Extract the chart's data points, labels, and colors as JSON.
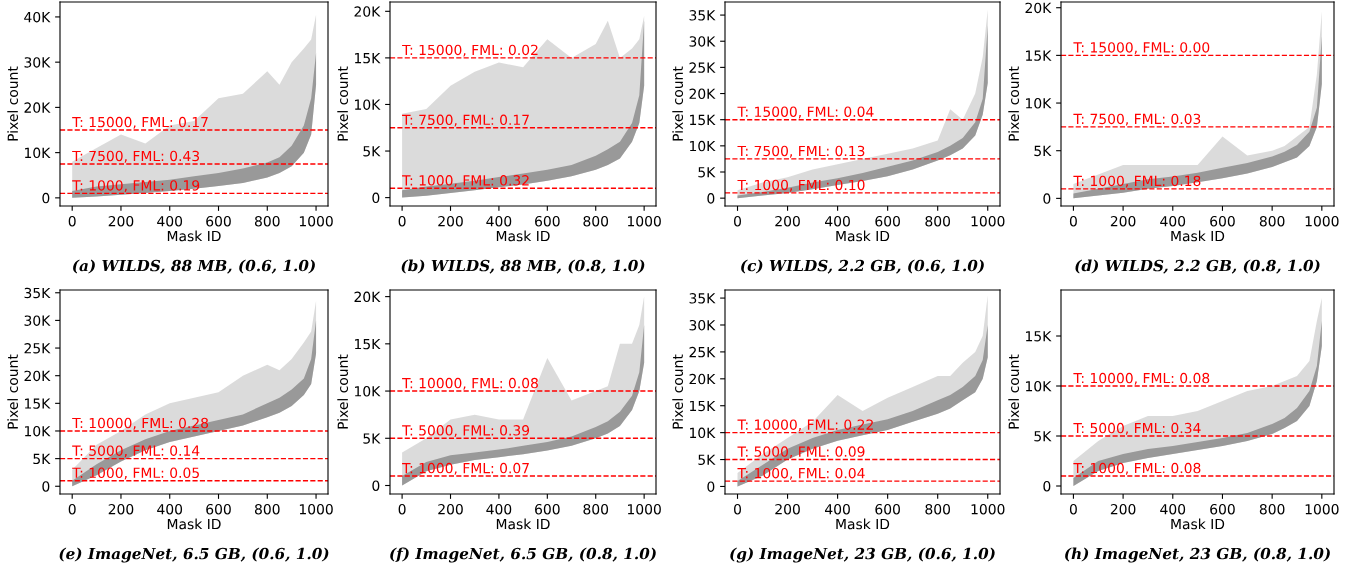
{
  "chart_data": [
    {
      "type": "area",
      "title": "(a) WILDS, 88 MB, (0.6, 1.0)",
      "xlabel": "Mask ID",
      "ylabel": "Pixel count",
      "xlim": [
        -50,
        1049
      ],
      "ylim": [
        -1800,
        43300
      ],
      "xticks": [
        0,
        200,
        400,
        600,
        800,
        1000
      ],
      "yticks": [
        0,
        {
          "value": 10000,
          "label": "10K"
        },
        {
          "value": 20000,
          "label": "20K"
        },
        {
          "value": 30000,
          "label": "30K"
        },
        {
          "value": 40000,
          "label": "40K"
        }
      ],
      "series": [
        {
          "color": "#999999",
          "x": [
            0,
            100,
            200,
            300,
            400,
            500,
            600,
            700,
            800,
            850,
            900,
            950,
            980,
            1000
          ],
          "lower": [
            0,
            300,
            700,
            1100,
            1500,
            2000,
            2600,
            3300,
            4500,
            5500,
            7000,
            10000,
            14000,
            25000
          ],
          "values": [
            1500,
            2500,
            3000,
            3500,
            4000,
            4800,
            5500,
            6500,
            7800,
            9000,
            11500,
            16000,
            22000,
            32000
          ],
          "upper": [
            8000,
            11000,
            14000,
            12000,
            16000,
            17000,
            22000,
            23000,
            28000,
            25000,
            30000,
            33000,
            35000,
            40500
          ]
        }
      ],
      "ref_lines": [
        {
          "axis": "y",
          "value": 15000,
          "label": "T: 15000, FML: 0.17",
          "color": "#ff0000",
          "line_style": "dashed"
        },
        {
          "axis": "y",
          "value": 7500,
          "label": "T: 7500, FML: 0.43",
          "color": "#ff0000",
          "line_style": "dashed"
        },
        {
          "axis": "y",
          "value": 1000,
          "label": "T: 1000, FML: 0.19",
          "color": "#ff0000",
          "line_style": "dashed"
        }
      ]
    },
    {
      "type": "area",
      "title": "(b) WILDS, 88 MB, (0.8, 1.0)",
      "xlabel": "Mask ID",
      "ylabel": "Pixel count",
      "xlim": [
        -50,
        1049
      ],
      "ylim": [
        -900,
        21000
      ],
      "xticks": [
        0,
        200,
        400,
        600,
        800,
        1000
      ],
      "yticks": [
        0,
        {
          "value": 5000,
          "label": "5K"
        },
        {
          "value": 10000,
          "label": "10K"
        },
        {
          "value": 15000,
          "label": "15K"
        },
        {
          "value": 20000,
          "label": "20K"
        }
      ],
      "series": [
        {
          "color": "#999999",
          "x": [
            0,
            100,
            200,
            300,
            400,
            500,
            600,
            700,
            800,
            850,
            900,
            950,
            980,
            1000
          ],
          "lower": [
            0,
            200,
            500,
            800,
            1100,
            1400,
            1800,
            2300,
            3000,
            3500,
            4200,
            6000,
            8000,
            12000
          ],
          "values": [
            800,
            1200,
            1500,
            1800,
            2200,
            2600,
            3000,
            3500,
            4500,
            5200,
            6000,
            8000,
            11000,
            19000
          ],
          "upper": [
            9000,
            9500,
            12000,
            13500,
            14500,
            14000,
            17000,
            15000,
            16500,
            19000,
            15000,
            16000,
            17000,
            19500
          ]
        }
      ],
      "ref_lines": [
        {
          "axis": "y",
          "value": 15000,
          "label": "T: 15000, FML: 0.02",
          "color": "#ff0000",
          "line_style": "dashed"
        },
        {
          "axis": "y",
          "value": 7500,
          "label": "T: 7500, FML: 0.17",
          "color": "#ff0000",
          "line_style": "dashed"
        },
        {
          "axis": "y",
          "value": 1000,
          "label": "T: 1000, FML: 0.32",
          "color": "#ff0000",
          "line_style": "dashed"
        }
      ]
    },
    {
      "type": "area",
      "title": "(c) WILDS, 2.2 GB, (0.6, 1.0)",
      "xlabel": "Mask ID",
      "ylabel": "Pixel count",
      "xlim": [
        -50,
        1049
      ],
      "ylim": [
        -1500,
        37500
      ],
      "xticks": [
        0,
        200,
        400,
        600,
        800,
        1000
      ],
      "yticks": [
        0,
        {
          "value": 5000,
          "label": "5K"
        },
        {
          "value": 10000,
          "label": "10K"
        },
        {
          "value": 15000,
          "label": "15K"
        },
        {
          "value": 20000,
          "label": "20K"
        },
        {
          "value": 25000,
          "label": "25K"
        },
        {
          "value": 30000,
          "label": "30K"
        },
        {
          "value": 35000,
          "label": "35K"
        }
      ],
      "series": [
        {
          "color": "#999999",
          "x": [
            0,
            100,
            200,
            300,
            400,
            500,
            600,
            700,
            800,
            850,
            900,
            950,
            980,
            1000
          ],
          "lower": [
            0,
            500,
            1000,
            1700,
            2500,
            3300,
            4200,
            5500,
            7200,
            8200,
            9500,
            12000,
            16000,
            22000
          ],
          "values": [
            500,
            1200,
            2000,
            3000,
            3800,
            4800,
            6000,
            7200,
            8800,
            10000,
            11500,
            14500,
            19000,
            33000
          ],
          "upper": [
            1500,
            3000,
            4000,
            5500,
            6500,
            7500,
            8500,
            9500,
            11000,
            17000,
            15000,
            20000,
            27000,
            36000
          ]
        }
      ],
      "ref_lines": [
        {
          "axis": "y",
          "value": 15000,
          "label": "T: 15000, FML: 0.04",
          "color": "#ff0000",
          "line_style": "dashed"
        },
        {
          "axis": "y",
          "value": 7500,
          "label": "T: 7500, FML: 0.13",
          "color": "#ff0000",
          "line_style": "dashed"
        },
        {
          "axis": "y",
          "value": 1000,
          "label": "T: 1000, FML: 0.10",
          "color": "#ff0000",
          "line_style": "dashed"
        }
      ]
    },
    {
      "type": "area",
      "title": "(d) WILDS, 2.2 GB, (0.8, 1.0)",
      "xlabel": "Mask ID",
      "ylabel": "Pixel count",
      "xlim": [
        -50,
        1049
      ],
      "ylim": [
        -800,
        20600
      ],
      "xticks": [
        0,
        200,
        400,
        600,
        800,
        1000
      ],
      "yticks": [
        0,
        {
          "value": 5000,
          "label": "5K"
        },
        {
          "value": 10000,
          "label": "10K"
        },
        {
          "value": 15000,
          "label": "15K"
        },
        {
          "value": 20000,
          "label": "20K"
        }
      ],
      "series": [
        {
          "color": "#999999",
          "x": [
            0,
            100,
            200,
            300,
            400,
            500,
            600,
            700,
            800,
            850,
            900,
            950,
            980,
            1000
          ],
          "lower": [
            0,
            300,
            600,
            1000,
            1300,
            1700,
            2100,
            2600,
            3300,
            3800,
            4300,
            5500,
            7500,
            12000
          ],
          "values": [
            500,
            1000,
            1500,
            2000,
            2300,
            2700,
            3200,
            3700,
            4400,
            4900,
            5600,
            7000,
            9500,
            17000
          ],
          "upper": [
            1500,
            2500,
            3500,
            3500,
            3500,
            3500,
            6500,
            4500,
            5000,
            5500,
            6500,
            7500,
            13000,
            19600
          ]
        }
      ],
      "ref_lines": [
        {
          "axis": "y",
          "value": 15000,
          "label": "T: 15000, FML: 0.00",
          "color": "#ff0000",
          "line_style": "dashed"
        },
        {
          "axis": "y",
          "value": 7500,
          "label": "T: 7500, FML: 0.03",
          "color": "#ff0000",
          "line_style": "dashed"
        },
        {
          "axis": "y",
          "value": 1000,
          "label": "T: 1000, FML: 0.18",
          "color": "#ff0000",
          "line_style": "dashed"
        }
      ]
    },
    {
      "type": "area",
      "title": "(e) ImageNet, 6.5 GB, (0.6, 1.0)",
      "xlabel": "Mask ID",
      "ylabel": "Pixel count",
      "xlim": [
        -50,
        1049
      ],
      "ylim": [
        -1400,
        35500
      ],
      "xticks": [
        0,
        200,
        400,
        600,
        800,
        1000
      ],
      "yticks": [
        0,
        {
          "value": 5000,
          "label": "5K"
        },
        {
          "value": 10000,
          "label": "10K"
        },
        {
          "value": 15000,
          "label": "15K"
        },
        {
          "value": 20000,
          "label": "20K"
        },
        {
          "value": 25000,
          "label": "25K"
        },
        {
          "value": 30000,
          "label": "30K"
        },
        {
          "value": 35000,
          "label": "35K"
        }
      ],
      "series": [
        {
          "color": "#999999",
          "x": [
            0,
            100,
            200,
            300,
            400,
            500,
            600,
            700,
            800,
            850,
            900,
            950,
            980,
            1000
          ],
          "lower": [
            0,
            2000,
            4500,
            6500,
            8000,
            9000,
            10000,
            11000,
            12500,
            13300,
            14500,
            16500,
            18500,
            24000
          ],
          "values": [
            1000,
            4000,
            6500,
            8500,
            10000,
            11000,
            12000,
            13000,
            15000,
            16000,
            17500,
            19500,
            23000,
            30000
          ],
          "upper": [
            3000,
            7500,
            10000,
            13000,
            15000,
            16000,
            17000,
            20000,
            22000,
            21000,
            23000,
            26000,
            28000,
            33500
          ]
        }
      ],
      "ref_lines": [
        {
          "axis": "y",
          "value": 10000,
          "label": "T: 10000, FML: 0.28",
          "color": "#ff0000",
          "line_style": "dashed"
        },
        {
          "axis": "y",
          "value": 5000,
          "label": "T: 5000, FML: 0.14",
          "color": "#ff0000",
          "line_style": "dashed"
        },
        {
          "axis": "y",
          "value": 1000,
          "label": "T: 1000, FML: 0.05",
          "color": "#ff0000",
          "line_style": "dashed"
        }
      ]
    },
    {
      "type": "area",
      "title": "(f) ImageNet, 6.5 GB, (0.8, 1.0)",
      "xlabel": "Mask ID",
      "ylabel": "Pixel count",
      "xlim": [
        -50,
        1049
      ],
      "ylim": [
        -900,
        20700
      ],
      "xticks": [
        0,
        200,
        400,
        600,
        800,
        1000
      ],
      "yticks": [
        0,
        {
          "value": 5000,
          "label": "5K"
        },
        {
          "value": 10000,
          "label": "10K"
        },
        {
          "value": 15000,
          "label": "15K"
        },
        {
          "value": 20000,
          "label": "20K"
        }
      ],
      "series": [
        {
          "color": "#999999",
          "x": [
            0,
            100,
            200,
            300,
            400,
            500,
            600,
            700,
            800,
            850,
            900,
            950,
            980,
            1000
          ],
          "lower": [
            0,
            1500,
            2200,
            2700,
            3000,
            3300,
            3700,
            4200,
            5000,
            5500,
            6300,
            8000,
            10000,
            13000
          ],
          "values": [
            1000,
            2500,
            3200,
            3500,
            3800,
            4200,
            4600,
            5200,
            6200,
            6800,
            7800,
            9500,
            12000,
            17000
          ],
          "upper": [
            3500,
            5000,
            7000,
            7500,
            7000,
            7000,
            13500,
            9000,
            10000,
            10500,
            15000,
            15000,
            17000,
            20000
          ]
        }
      ],
      "ref_lines": [
        {
          "axis": "y",
          "value": 10000,
          "label": "T: 10000, FML: 0.08",
          "color": "#ff0000",
          "line_style": "dashed"
        },
        {
          "axis": "y",
          "value": 5000,
          "label": "T: 5000, FML: 0.39",
          "color": "#ff0000",
          "line_style": "dashed"
        },
        {
          "axis": "y",
          "value": 1000,
          "label": "T: 1000, FML: 0.07",
          "color": "#ff0000",
          "line_style": "dashed"
        }
      ]
    },
    {
      "type": "area",
      "title": "(g) ImageNet, 23 GB, (0.6, 1.0)",
      "xlabel": "Mask ID",
      "ylabel": "Pixel count",
      "xlim": [
        -50,
        1049
      ],
      "ylim": [
        -1400,
        36500
      ],
      "xticks": [
        0,
        200,
        400,
        600,
        800,
        1000
      ],
      "yticks": [
        0,
        {
          "value": 5000,
          "label": "5K"
        },
        {
          "value": 10000,
          "label": "10K"
        },
        {
          "value": 15000,
          "label": "15K"
        },
        {
          "value": 20000,
          "label": "20K"
        },
        {
          "value": 25000,
          "label": "25K"
        },
        {
          "value": 30000,
          "label": "30K"
        },
        {
          "value": 35000,
          "label": "35K"
        }
      ],
      "series": [
        {
          "color": "#999999",
          "x": [
            0,
            100,
            200,
            300,
            400,
            500,
            600,
            700,
            800,
            850,
            900,
            950,
            980,
            1000
          ],
          "lower": [
            0,
            2000,
            5000,
            7000,
            8500,
            9500,
            10500,
            12000,
            13500,
            14500,
            16000,
            17500,
            20000,
            24000
          ],
          "values": [
            1000,
            4000,
            7000,
            9000,
            10500,
            11500,
            12500,
            14000,
            16000,
            17000,
            18500,
            20500,
            23500,
            30000
          ],
          "upper": [
            2500,
            6000,
            9000,
            12000,
            17000,
            14000,
            16500,
            18500,
            20500,
            20500,
            23000,
            25000,
            28000,
            35500
          ]
        }
      ],
      "ref_lines": [
        {
          "axis": "y",
          "value": 10000,
          "label": "T: 10000, FML: 0.22",
          "color": "#ff0000",
          "line_style": "dashed"
        },
        {
          "axis": "y",
          "value": 5000,
          "label": "T: 5000, FML: 0.09",
          "color": "#ff0000",
          "line_style": "dashed"
        },
        {
          "axis": "y",
          "value": 1000,
          "label": "T: 1000, FML: 0.04",
          "color": "#ff0000",
          "line_style": "dashed"
        }
      ]
    },
    {
      "type": "area",
      "title": "(h) ImageNet, 23 GB, (0.8, 1.0)",
      "xlabel": "Mask ID",
      "ylabel": "Pixel count",
      "xlim": [
        -50,
        1049
      ],
      "ylim": [
        -800,
        19600
      ],
      "xticks": [
        0,
        200,
        400,
        600,
        800,
        1000
      ],
      "yticks": [
        0,
        {
          "value": 5000,
          "label": "5K"
        },
        {
          "value": 10000,
          "label": "10K"
        },
        {
          "value": 15000,
          "label": "15K"
        }
      ],
      "series": [
        {
          "color": "#999999",
          "x": [
            0,
            100,
            200,
            300,
            400,
            500,
            600,
            700,
            800,
            850,
            900,
            950,
            980,
            1000
          ],
          "lower": [
            0,
            1500,
            2300,
            2800,
            3200,
            3600,
            4000,
            4500,
            5200,
            5800,
            6500,
            8000,
            10500,
            14000
          ],
          "values": [
            800,
            2500,
            3200,
            3700,
            4000,
            4400,
            4800,
            5300,
            6200,
            6800,
            7800,
            9500,
            12000,
            16500
          ],
          "upper": [
            2500,
            4500,
            6000,
            7000,
            7000,
            7500,
            8500,
            9500,
            10000,
            10500,
            11000,
            12500,
            16500,
            18800
          ]
        }
      ],
      "ref_lines": [
        {
          "axis": "y",
          "value": 10000,
          "label": "T: 10000, FML: 0.08",
          "color": "#ff0000",
          "line_style": "dashed"
        },
        {
          "axis": "y",
          "value": 5000,
          "label": "T: 5000, FML: 0.34",
          "color": "#ff0000",
          "line_style": "dashed"
        },
        {
          "axis": "y",
          "value": 1000,
          "label": "T: 1000, FML: 0.08",
          "color": "#ff0000",
          "line_style": "dashed"
        }
      ]
    }
  ]
}
